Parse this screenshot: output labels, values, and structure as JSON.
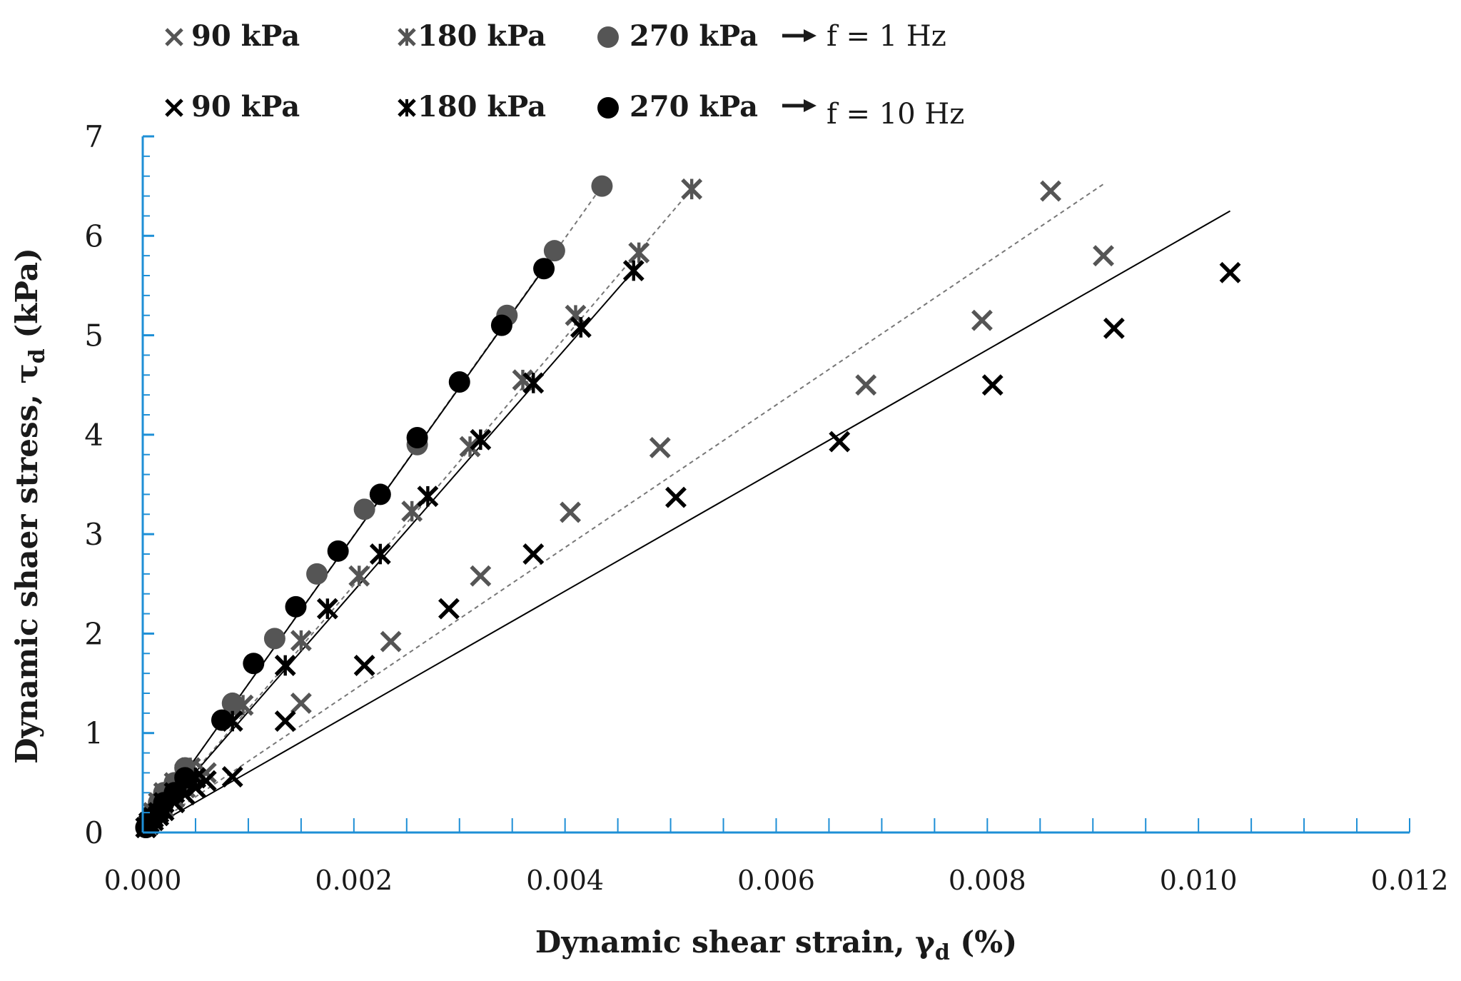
{
  "chart_data": {
    "type": "scatter",
    "xlabel": "Dynamic shear strain, γd (%)",
    "xlabel_main": "Dynamic shear strain, γ",
    "xlabel_sub": "d",
    "xlabel_tail": " (%)",
    "ylabel": "Dynamic shaer stress, τd (kPa)",
    "ylabel_main": "Dynamic shaer stress, τ",
    "ylabel_sub": "d",
    "ylabel_tail": " (kPa)",
    "xlim": [
      0,
      0.012
    ],
    "ylim": [
      0,
      7
    ],
    "xticks": [
      0.0,
      0.002,
      0.004,
      0.006,
      0.008,
      0.01,
      0.012
    ],
    "xtick_labels": [
      "0.000",
      "0.002",
      "0.004",
      "0.006",
      "0.008",
      "0.010",
      "0.012"
    ],
    "yticks": [
      0,
      1,
      2,
      3,
      4,
      5,
      6,
      7
    ],
    "ytick_labels": [
      "0",
      "1",
      "2",
      "3",
      "4",
      "5",
      "6",
      "7"
    ],
    "colors": {
      "axis": "#1e8fd6",
      "f1": "#555555",
      "f10": "#000000"
    },
    "legend": {
      "row1": {
        "items": [
          "90 kPa",
          "180 kPa",
          "270 kPa"
        ],
        "arrow_label": "f = 1 Hz"
      },
      "row2": {
        "items": [
          "90 kPa",
          "180 kPa",
          "270 kPa"
        ],
        "arrow_label": "f = 10 Hz"
      }
    },
    "series": [
      {
        "name": "90 kPa, f = 1 Hz",
        "marker": "x",
        "color": "#555555",
        "x": [
          3e-05,
          6e-05,
          0.0001,
          0.00015,
          0.0002,
          0.0003,
          0.0004,
          0.0005,
          0.0006,
          0.0015,
          0.00235,
          0.0032,
          0.00405,
          0.0049,
          0.00685,
          0.00795,
          0.0086,
          0.0091
        ],
        "y": [
          0.05,
          0.1,
          0.15,
          0.2,
          0.25,
          0.35,
          0.45,
          0.55,
          0.6,
          1.3,
          1.92,
          2.58,
          3.22,
          3.87,
          4.5,
          5.15,
          6.45,
          5.8
        ],
        "trend": {
          "style": "dashed",
          "x": [
            0,
            0.0091
          ],
          "y": [
            0,
            6.52
          ]
        }
      },
      {
        "name": "180 kPa, f = 1 Hz",
        "marker": "asterisk",
        "color": "#555555",
        "x": [
          3e-05,
          6e-05,
          0.0001,
          0.00015,
          0.0002,
          0.0003,
          0.0004,
          0.00045,
          0.00095,
          0.0015,
          0.00205,
          0.00255,
          0.0031,
          0.0036,
          0.0041,
          0.0047,
          0.0052
        ],
        "y": [
          0.05,
          0.1,
          0.2,
          0.3,
          0.4,
          0.5,
          0.6,
          0.65,
          1.28,
          1.93,
          2.58,
          3.23,
          3.88,
          4.55,
          5.2,
          5.83,
          6.47
        ],
        "trend": {
          "style": "dashed",
          "x": [
            0,
            0.0052
          ],
          "y": [
            0,
            6.47
          ]
        }
      },
      {
        "name": "270 kPa, f = 1 Hz",
        "marker": "circle",
        "color": "#555555",
        "x": [
          3e-05,
          6e-05,
          0.0001,
          0.00015,
          0.0002,
          0.0003,
          0.0004,
          0.00085,
          0.00125,
          0.00165,
          0.0021,
          0.0026,
          0.00345,
          0.0039,
          0.00435
        ],
        "y": [
          0.05,
          0.12,
          0.2,
          0.3,
          0.4,
          0.5,
          0.65,
          1.3,
          1.95,
          2.6,
          3.25,
          3.9,
          5.2,
          5.85,
          6.5
        ],
        "trend": {
          "style": "dashed",
          "x": [
            0,
            0.00435
          ],
          "y": [
            0,
            6.5
          ]
        }
      },
      {
        "name": "90 kPa, f = 10 Hz",
        "marker": "x",
        "color": "#000000",
        "x": [
          3e-05,
          6e-05,
          0.0001,
          0.00015,
          0.0002,
          0.0003,
          0.0004,
          0.0005,
          0.0006,
          0.00085,
          0.00135,
          0.0021,
          0.0029,
          0.0037,
          0.00505,
          0.0066,
          0.00805,
          0.0092,
          0.0103
        ],
        "y": [
          0.05,
          0.08,
          0.12,
          0.17,
          0.22,
          0.3,
          0.38,
          0.45,
          0.52,
          0.56,
          1.12,
          1.68,
          2.25,
          2.8,
          3.37,
          3.93,
          4.5,
          5.07,
          5.63
        ],
        "trend": {
          "style": "solid",
          "x": [
            0,
            0.0103
          ],
          "y": [
            0,
            6.25
          ]
        }
      },
      {
        "name": "180 kPa, f = 10 Hz",
        "marker": "asterisk",
        "color": "#000000",
        "x": [
          3e-05,
          6e-05,
          0.0001,
          0.00015,
          0.0002,
          0.0003,
          0.0004,
          0.0005,
          0.00085,
          0.00135,
          0.00175,
          0.00225,
          0.0027,
          0.0032,
          0.0037,
          0.00415,
          0.00465
        ],
        "y": [
          0.05,
          0.1,
          0.15,
          0.2,
          0.3,
          0.4,
          0.5,
          0.55,
          1.12,
          1.68,
          2.25,
          2.8,
          3.38,
          3.95,
          4.52,
          5.08,
          5.65
        ],
        "trend": {
          "style": "solid",
          "x": [
            0,
            0.00465
          ],
          "y": [
            0,
            5.65
          ]
        }
      },
      {
        "name": "270 kPa, f = 10 Hz",
        "marker": "circle",
        "color": "#000000",
        "x": [
          3e-05,
          6e-05,
          0.0001,
          0.00015,
          0.0002,
          0.0003,
          0.0004,
          0.00075,
          0.00105,
          0.00145,
          0.00185,
          0.00225,
          0.0026,
          0.003,
          0.0034,
          0.0038
        ],
        "y": [
          0.05,
          0.1,
          0.15,
          0.2,
          0.3,
          0.4,
          0.55,
          1.13,
          1.7,
          2.27,
          2.83,
          3.4,
          3.97,
          4.53,
          5.1,
          5.67
        ],
        "trend": {
          "style": "solid",
          "x": [
            0,
            0.0038
          ],
          "y": [
            0,
            5.67
          ]
        }
      }
    ]
  }
}
